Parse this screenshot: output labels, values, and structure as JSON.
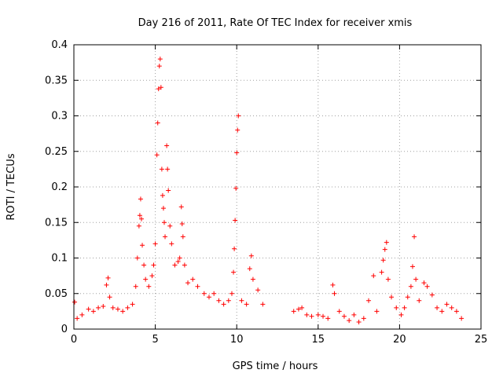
{
  "chart_data": {
    "type": "scatter",
    "title": "Day 216 of 2011, Rate Of TEC Index for receiver xmis",
    "xlabel": "GPS time / hours",
    "ylabel": "ROTI / TECUs",
    "xlim": [
      0,
      25
    ],
    "ylim": [
      0,
      0.4
    ],
    "xticks": [
      "0",
      "5",
      "10",
      "15",
      "20",
      "25"
    ],
    "yticks": [
      "0",
      "0.05",
      "0.1",
      "0.15",
      "0.2",
      "0.25",
      "0.3",
      "0.35",
      "0.4"
    ],
    "grid": true,
    "marker": "plus",
    "color": "#ff0000",
    "series": [
      {
        "points": [
          [
            0.05,
            0.038
          ],
          [
            0.2,
            0.015
          ],
          [
            0.5,
            0.02
          ],
          [
            0.9,
            0.028
          ],
          [
            1.2,
            0.025
          ],
          [
            1.5,
            0.03
          ],
          [
            1.8,
            0.032
          ],
          [
            2.0,
            0.062
          ],
          [
            2.1,
            0.072
          ],
          [
            2.2,
            0.045
          ],
          [
            2.4,
            0.03
          ],
          [
            2.7,
            0.028
          ],
          [
            3.0,
            0.025
          ],
          [
            3.3,
            0.03
          ],
          [
            3.6,
            0.035
          ],
          [
            3.8,
            0.06
          ],
          [
            3.9,
            0.1
          ],
          [
            4.0,
            0.145
          ],
          [
            4.05,
            0.16
          ],
          [
            4.1,
            0.183
          ],
          [
            4.15,
            0.155
          ],
          [
            4.2,
            0.118
          ],
          [
            4.3,
            0.09
          ],
          [
            4.4,
            0.07
          ],
          [
            4.6,
            0.06
          ],
          [
            4.8,
            0.075
          ],
          [
            4.9,
            0.09
          ],
          [
            5.0,
            0.12
          ],
          [
            5.1,
            0.245
          ],
          [
            5.15,
            0.29
          ],
          [
            5.2,
            0.338
          ],
          [
            5.25,
            0.37
          ],
          [
            5.3,
            0.38
          ],
          [
            5.35,
            0.34
          ],
          [
            5.4,
            0.225
          ],
          [
            5.45,
            0.188
          ],
          [
            5.5,
            0.17
          ],
          [
            5.55,
            0.15
          ],
          [
            5.6,
            0.13
          ],
          [
            5.7,
            0.258
          ],
          [
            5.75,
            0.225
          ],
          [
            5.8,
            0.195
          ],
          [
            5.9,
            0.145
          ],
          [
            6.0,
            0.12
          ],
          [
            6.2,
            0.09
          ],
          [
            6.4,
            0.095
          ],
          [
            6.5,
            0.1
          ],
          [
            6.6,
            0.172
          ],
          [
            6.65,
            0.148
          ],
          [
            6.7,
            0.13
          ],
          [
            6.8,
            0.09
          ],
          [
            7.0,
            0.065
          ],
          [
            7.3,
            0.07
          ],
          [
            7.6,
            0.06
          ],
          [
            8.0,
            0.05
          ],
          [
            8.3,
            0.045
          ],
          [
            8.6,
            0.05
          ],
          [
            8.9,
            0.04
          ],
          [
            9.2,
            0.035
          ],
          [
            9.5,
            0.04
          ],
          [
            9.7,
            0.05
          ],
          [
            9.8,
            0.08
          ],
          [
            9.85,
            0.113
          ],
          [
            9.9,
            0.153
          ],
          [
            9.95,
            0.198
          ],
          [
            10.0,
            0.248
          ],
          [
            10.05,
            0.28
          ],
          [
            10.1,
            0.3
          ],
          [
            10.3,
            0.04
          ],
          [
            10.6,
            0.035
          ],
          [
            10.8,
            0.085
          ],
          [
            10.9,
            0.103
          ],
          [
            11.0,
            0.07
          ],
          [
            11.3,
            0.055
          ],
          [
            11.6,
            0.035
          ],
          [
            13.5,
            0.025
          ],
          [
            13.8,
            0.028
          ],
          [
            14.0,
            0.03
          ],
          [
            14.3,
            0.02
          ],
          [
            14.6,
            0.018
          ],
          [
            15.0,
            0.02
          ],
          [
            15.3,
            0.018
          ],
          [
            15.6,
            0.015
          ],
          [
            15.9,
            0.062
          ],
          [
            16.0,
            0.05
          ],
          [
            16.3,
            0.025
          ],
          [
            16.6,
            0.018
          ],
          [
            16.9,
            0.012
          ],
          [
            17.2,
            0.02
          ],
          [
            17.5,
            0.01
          ],
          [
            17.8,
            0.015
          ],
          [
            18.1,
            0.04
          ],
          [
            18.4,
            0.075
          ],
          [
            18.6,
            0.025
          ],
          [
            18.9,
            0.08
          ],
          [
            19.0,
            0.097
          ],
          [
            19.1,
            0.112
          ],
          [
            19.2,
            0.122
          ],
          [
            19.3,
            0.07
          ],
          [
            19.5,
            0.045
          ],
          [
            19.8,
            0.03
          ],
          [
            20.1,
            0.02
          ],
          [
            20.3,
            0.03
          ],
          [
            20.5,
            0.045
          ],
          [
            20.7,
            0.06
          ],
          [
            20.8,
            0.088
          ],
          [
            20.9,
            0.13
          ],
          [
            21.0,
            0.07
          ],
          [
            21.2,
            0.04
          ],
          [
            21.5,
            0.065
          ],
          [
            21.7,
            0.06
          ],
          [
            22.0,
            0.048
          ],
          [
            22.3,
            0.03
          ],
          [
            22.6,
            0.025
          ],
          [
            22.9,
            0.035
          ],
          [
            23.2,
            0.03
          ],
          [
            23.5,
            0.025
          ],
          [
            23.8,
            0.015
          ]
        ]
      }
    ]
  }
}
